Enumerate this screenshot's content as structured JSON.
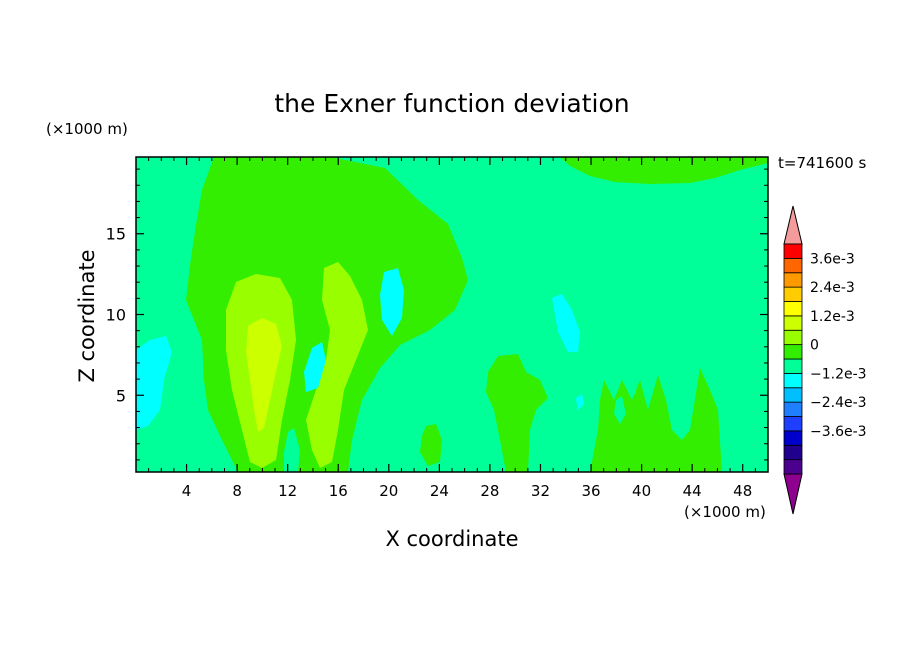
{
  "chart_data": {
    "type": "contour",
    "title": "the Exner function deviation",
    "xlabel": "X coordinate",
    "ylabel": "Z coordinate",
    "x_unit": "(×1000 m)",
    "y_unit": "(×1000 m)",
    "time_label": "t=741600 s",
    "xlim": [
      0,
      50
    ],
    "ylim": [
      0.25,
      19.75
    ],
    "x_ticks": [
      4,
      8,
      12,
      16,
      20,
      24,
      28,
      32,
      36,
      40,
      44,
      48
    ],
    "y_ticks": [
      5,
      10,
      15
    ],
    "colorbar": {
      "levels": [
        -0.0042,
        -0.0036,
        -0.003,
        -0.0024,
        -0.0018,
        -0.0012,
        -0.0006,
        0,
        0.0006,
        0.0012,
        0.0018,
        0.0024,
        0.003,
        0.0036,
        0.0042
      ],
      "colors": [
        "#8e008e",
        "#4b008e",
        "#22008e",
        "#0000cc",
        "#1f3fff",
        "#1f7fff",
        "#00bfff",
        "#00ffff",
        "#00ff99",
        "#33ee00",
        "#99ff00",
        "#ccff00",
        "#ffff00",
        "#ffcc00",
        "#ff9900",
        "#ff6600",
        "#ff0000",
        "#f49b9b"
      ],
      "tick_labels": [
        "3.6e-3",
        "2.4e-3",
        "1.2e-3",
        "0",
        "−1.2e-3",
        "−2.4e-3",
        "−3.6e-3"
      ]
    },
    "regions": [
      {
        "level_range": [
          -0.0006,
          0
        ],
        "color": "#00ff99",
        "description": "background"
      },
      {
        "level_range": [
          0,
          0.0006
        ],
        "color": "#33ee00",
        "description": "left-centre positive plume"
      },
      {
        "level_range": [
          0.0006,
          0.0012
        ],
        "color": "#99ff00",
        "description": "inner plumes"
      },
      {
        "level_range": [
          0.0012,
          0.0018
        ],
        "color": "#ccff00",
        "description": "core near x≈10, z≈8"
      },
      {
        "level_range": [
          -0.0012,
          -0.0006
        ],
        "color": "#00ffff",
        "description": "small negative patches"
      }
    ]
  }
}
